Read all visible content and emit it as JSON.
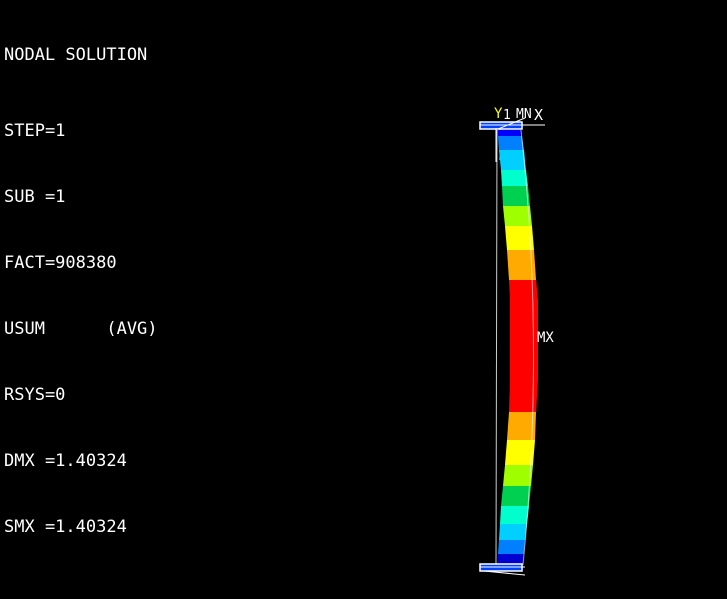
{
  "title": "NODAL SOLUTION",
  "info": {
    "step": "STEP=1",
    "sub": "SUB =1",
    "fact": "FACT=908380",
    "result": "USUM      (AVG)",
    "rsys": "RSYS=0",
    "dmx": "DMX =1.40324",
    "smx": "SMX =1.40324"
  },
  "markers": {
    "max_label": "MX",
    "top_label": "MN",
    "axis_y": "Y",
    "axis_x": "X",
    "node_one": "1"
  },
  "contour_bands": [
    {
      "band": 1,
      "color": "#0000ff"
    },
    {
      "band": 2,
      "color": "#0080ff"
    },
    {
      "band": 3,
      "color": "#00cfff"
    },
    {
      "band": 4,
      "color": "#00ffcc"
    },
    {
      "band": 5,
      "color": "#00d050"
    },
    {
      "band": 6,
      "color": "#9fff00"
    },
    {
      "band": 7,
      "color": "#ffff00"
    },
    {
      "band": 8,
      "color": "#ffaa00"
    },
    {
      "band": 9,
      "color": "#ff0000"
    }
  ],
  "colors": {
    "background": "#000000",
    "text": "#ffffff",
    "axis_y": "#ffff00"
  }
}
